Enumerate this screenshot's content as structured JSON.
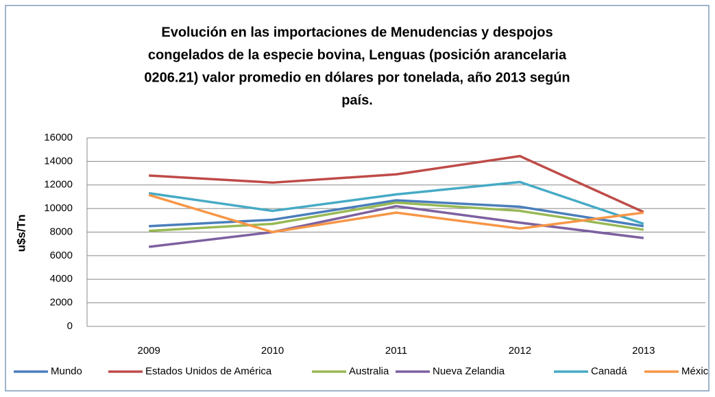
{
  "chart_data": {
    "type": "line",
    "title": [
      "Evolución en las importaciones de Menudencias y despojos",
      "congelados de la especie bovina, Lenguas  (posición arancelaria",
      "0206.21) valor promedio en dólares por tonelada, año 2013 según",
      "país."
    ],
    "y_label": "u$s/Tn",
    "categories": [
      "2009",
      "2010",
      "2011",
      "2012",
      "2013"
    ],
    "series": [
      {
        "name": "Mundo",
        "color": "#4a7ebb",
        "values": [
          8500,
          9050,
          10700,
          10150,
          8500
        ]
      },
      {
        "name": "Estados Unidos de América",
        "color": "#be4b48",
        "values": [
          12800,
          12200,
          12900,
          14450,
          9700
        ]
      },
      {
        "name": "Australia",
        "color": "#98b954",
        "values": [
          8100,
          8700,
          10500,
          9800,
          8200
        ]
      },
      {
        "name": "Nueva Zelandia",
        "color": "#7d60a0",
        "values": [
          6750,
          8000,
          10200,
          8800,
          7500
        ]
      },
      {
        "name": "Canadá",
        "color": "#46aac5",
        "values": [
          11300,
          9800,
          11200,
          12250,
          8700
        ]
      },
      {
        "name": "México",
        "color": "#f79646",
        "values": [
          11150,
          8000,
          9650,
          8300,
          9650
        ]
      }
    ],
    "ylim": [
      0,
      16000
    ],
    "yticks": [
      0,
      2000,
      4000,
      6000,
      8000,
      10000,
      12000,
      14000,
      16000
    ],
    "grid": true,
    "legend": "bottom"
  }
}
